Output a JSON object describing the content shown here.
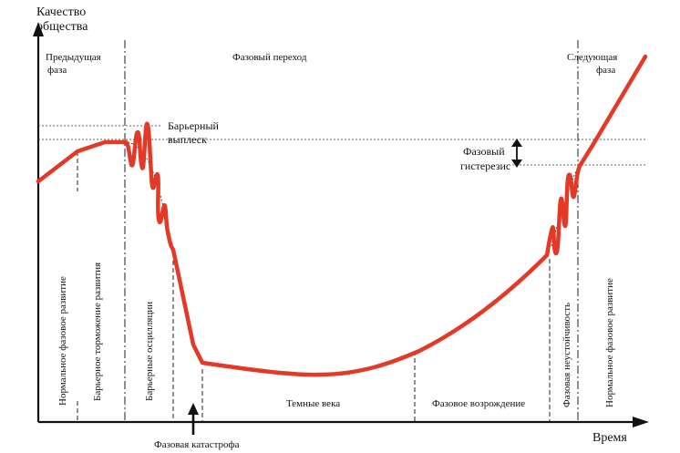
{
  "axes": {
    "y_label_line1": "Качество",
    "y_label_line2": "общества",
    "x_label": "Время"
  },
  "top_labels": {
    "previous_phase_line1": "Предыдущая",
    "previous_phase_line2": "фаза",
    "phase_transition": "Фазовый переход",
    "next_phase_line1": "Следующая",
    "next_phase_line2": "фаза"
  },
  "annotations": {
    "barrier_line1": "Барьерный",
    "barrier_line2": "выплеск",
    "hysteresis_line1": "Фазовый",
    "hysteresis_line2": "гистерезис",
    "catastrophe": "Фазовая катастрофа"
  },
  "stages": {
    "normal_development": "Нормальное фазовое развитие",
    "barrier_braking": "Барьерное торможение развития",
    "barrier_oscillations": "Барьерные осцилляции",
    "dark_ages": "Темные века",
    "phase_revival": "Фазовое возрождение",
    "phase_instability": "Фазовая неустойчивость",
    "normal_development_next": "Нормальное фазовое развитие"
  },
  "colors": {
    "curve": "#e23a26",
    "axis": "#111111",
    "guide": "#333333"
  }
}
